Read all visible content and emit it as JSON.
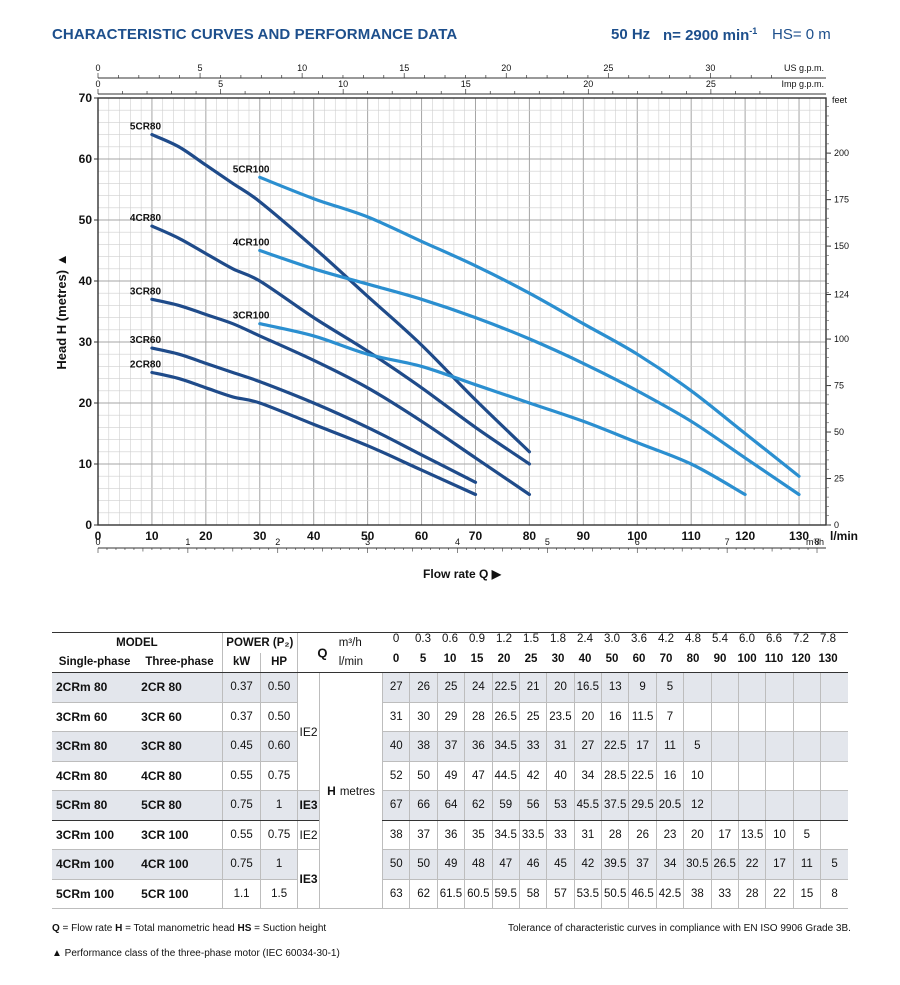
{
  "header": {
    "title": "CHARACTERISTIC CURVES AND PERFORMANCE DATA",
    "freq": "50 Hz",
    "speed": "n= 2900 min",
    "speed_sup": "-1",
    "hs": "HS= 0 m"
  },
  "colors": {
    "dark_curve": "#1f4b8a",
    "light_curve": "#2b8fd0",
    "title": "#1d4f8c",
    "shade": "#e3e6ec"
  },
  "chart_data": {
    "type": "line",
    "xlabel": "Flow rate  Q",
    "ylabel": "Head H  (metres)",
    "xlim": [
      0,
      135
    ],
    "ylim": [
      0,
      70
    ],
    "x_unit": "l/min",
    "x_ticks": [
      0,
      10,
      20,
      30,
      40,
      50,
      60,
      70,
      80,
      90,
      100,
      110,
      120,
      130
    ],
    "y_ticks": [
      0,
      10,
      20,
      30,
      40,
      50,
      60,
      70
    ],
    "feet_label": "feet",
    "feet_ticks": [
      0,
      25,
      50,
      75,
      100,
      124,
      150,
      175,
      200
    ],
    "usgpm_label": "US g.p.m.",
    "usgpm_ticks": [
      0,
      5,
      10,
      15,
      20,
      25,
      30
    ],
    "impgpm_label": "Imp g.p.m.",
    "impgpm_ticks": [
      0,
      5,
      10,
      15,
      20,
      25
    ],
    "m3h_label": "m³/h",
    "m3h_ticks": [
      0,
      1,
      2,
      3,
      4,
      5,
      6,
      7,
      8
    ],
    "grid": true,
    "series": [
      {
        "name": "2CR80",
        "x": [
          10,
          15,
          20,
          25,
          30,
          40,
          50,
          60,
          70
        ],
        "y": [
          25,
          24,
          22.5,
          21,
          20,
          16.5,
          13,
          9,
          5
        ]
      },
      {
        "name": "3CR60",
        "x": [
          10,
          15,
          20,
          25,
          30,
          40,
          50,
          60,
          70
        ],
        "y": [
          29,
          28,
          26.5,
          25,
          23.5,
          20,
          16,
          11.5,
          7
        ]
      },
      {
        "name": "3CR80",
        "x": [
          10,
          15,
          20,
          25,
          30,
          40,
          50,
          60,
          70,
          80
        ],
        "y": [
          37,
          36,
          34.5,
          33,
          31,
          27,
          22.5,
          17,
          11,
          5
        ]
      },
      {
        "name": "4CR80",
        "x": [
          10,
          15,
          20,
          25,
          30,
          40,
          50,
          60,
          70,
          80
        ],
        "y": [
          49,
          47,
          44.5,
          42,
          40,
          34,
          28.5,
          22.5,
          16,
          10
        ]
      },
      {
        "name": "5CR80",
        "x": [
          10,
          15,
          20,
          25,
          30,
          40,
          50,
          60,
          70,
          80
        ],
        "y": [
          64,
          62,
          59,
          56,
          53,
          45.5,
          37.5,
          29.5,
          20.5,
          12
        ]
      },
      {
        "name": "3CR100",
        "x": [
          30,
          40,
          50,
          60,
          70,
          80,
          90,
          100,
          110,
          120
        ],
        "y": [
          33,
          31,
          28,
          26,
          23,
          20,
          17,
          13.5,
          10,
          5
        ]
      },
      {
        "name": "4CR100",
        "x": [
          30,
          40,
          50,
          60,
          70,
          80,
          90,
          100,
          110,
          120,
          130
        ],
        "y": [
          45,
          42,
          39.5,
          37,
          34,
          30.5,
          26.5,
          22,
          17,
          11,
          5
        ]
      },
      {
        "name": "5CR100",
        "x": [
          30,
          40,
          50,
          60,
          70,
          80,
          90,
          100,
          110,
          120,
          130
        ],
        "y": [
          57,
          53.5,
          50.5,
          46.5,
          42.5,
          38,
          33,
          28,
          22,
          15,
          8
        ]
      }
    ]
  },
  "table": {
    "model_label": "MODEL",
    "power_label": "POWER (P₂)",
    "single_phase_label": "Single-phase",
    "three_phase_label": "Three-phase",
    "kw_label": "kW",
    "hp_label": "HP",
    "q_label": "Q",
    "m3h_unit": "m³/h",
    "lmin_unit": "l/min",
    "h_label": "H",
    "h_unit": "metres",
    "q_m3h": [
      "0",
      "0.3",
      "0.6",
      "0.9",
      "1.2",
      "1.5",
      "1.8",
      "2.4",
      "3.0",
      "3.6",
      "4.2",
      "4.8",
      "5.4",
      "6.0",
      "6.6",
      "7.2",
      "7.8"
    ],
    "q_lmin": [
      "0",
      "5",
      "10",
      "15",
      "20",
      "25",
      "30",
      "40",
      "50",
      "60",
      "70",
      "80",
      "90",
      "100",
      "110",
      "120",
      "130"
    ],
    "ie2": "IE2",
    "ie3": "IE3",
    "rows": [
      {
        "single": "2CRm 80",
        "three": "2CR 80",
        "kw": "0.37",
        "hp": "0.50",
        "h": [
          "27",
          "26",
          "25",
          "24",
          "22.5",
          "21",
          "20",
          "16.5",
          "13",
          "9",
          "5",
          "",
          "",
          "",
          "",
          "",
          ""
        ]
      },
      {
        "single": "3CRm 60",
        "three": "3CR 60",
        "kw": "0.37",
        "hp": "0.50",
        "h": [
          "31",
          "30",
          "29",
          "28",
          "26.5",
          "25",
          "23.5",
          "20",
          "16",
          "11.5",
          "7",
          "",
          "",
          "",
          "",
          "",
          ""
        ]
      },
      {
        "single": "3CRm 80",
        "three": "3CR 80",
        "kw": "0.45",
        "hp": "0.60",
        "h": [
          "40",
          "38",
          "37",
          "36",
          "34.5",
          "33",
          "31",
          "27",
          "22.5",
          "17",
          "11",
          "5",
          "",
          "",
          "",
          "",
          ""
        ]
      },
      {
        "single": "4CRm 80",
        "three": "4CR 80",
        "kw": "0.55",
        "hp": "0.75",
        "h": [
          "52",
          "50",
          "49",
          "47",
          "44.5",
          "42",
          "40",
          "34",
          "28.5",
          "22.5",
          "16",
          "10",
          "",
          "",
          "",
          "",
          ""
        ]
      },
      {
        "single": "5CRm 80",
        "three": "5CR 80",
        "kw": "0.75",
        "hp": "1",
        "h": [
          "67",
          "66",
          "64",
          "62",
          "59",
          "56",
          "53",
          "45.5",
          "37.5",
          "29.5",
          "20.5",
          "12",
          "",
          "",
          "",
          "",
          ""
        ]
      },
      {
        "single": "3CRm 100",
        "three": "3CR 100",
        "kw": "0.55",
        "hp": "0.75",
        "h": [
          "38",
          "37",
          "36",
          "35",
          "34.5",
          "33.5",
          "33",
          "31",
          "28",
          "26",
          "23",
          "20",
          "17",
          "13.5",
          "10",
          "5",
          ""
        ]
      },
      {
        "single": "4CRm 100",
        "three": "4CR 100",
        "kw": "0.75",
        "hp": "1",
        "h": [
          "50",
          "50",
          "49",
          "48",
          "47",
          "46",
          "45",
          "42",
          "39.5",
          "37",
          "34",
          "30.5",
          "26.5",
          "22",
          "17",
          "11",
          "5"
        ]
      },
      {
        "single": "5CRm 100",
        "three": "5CR 100",
        "kw": "1.1",
        "hp": "1.5",
        "h": [
          "63",
          "62",
          "61.5",
          "60.5",
          "59.5",
          "58",
          "57",
          "53.5",
          "50.5",
          "46.5",
          "42.5",
          "38",
          "33",
          "28",
          "22",
          "15",
          "8"
        ]
      }
    ]
  },
  "footer": {
    "q_abbr": "Q",
    "q_def": " = Flow rate   ",
    "h_abbr": "H",
    "h_def": " = Total manometric head   ",
    "hs_abbr": "HS",
    "hs_def": " = Suction height",
    "tolerance": "Tolerance of characteristic curves in compliance with EN ISO 9906 Grade 3B.",
    "note_symbol": "▲",
    "note": "  Performance class of the three-phase motor (IEC 60034-30-1)"
  }
}
